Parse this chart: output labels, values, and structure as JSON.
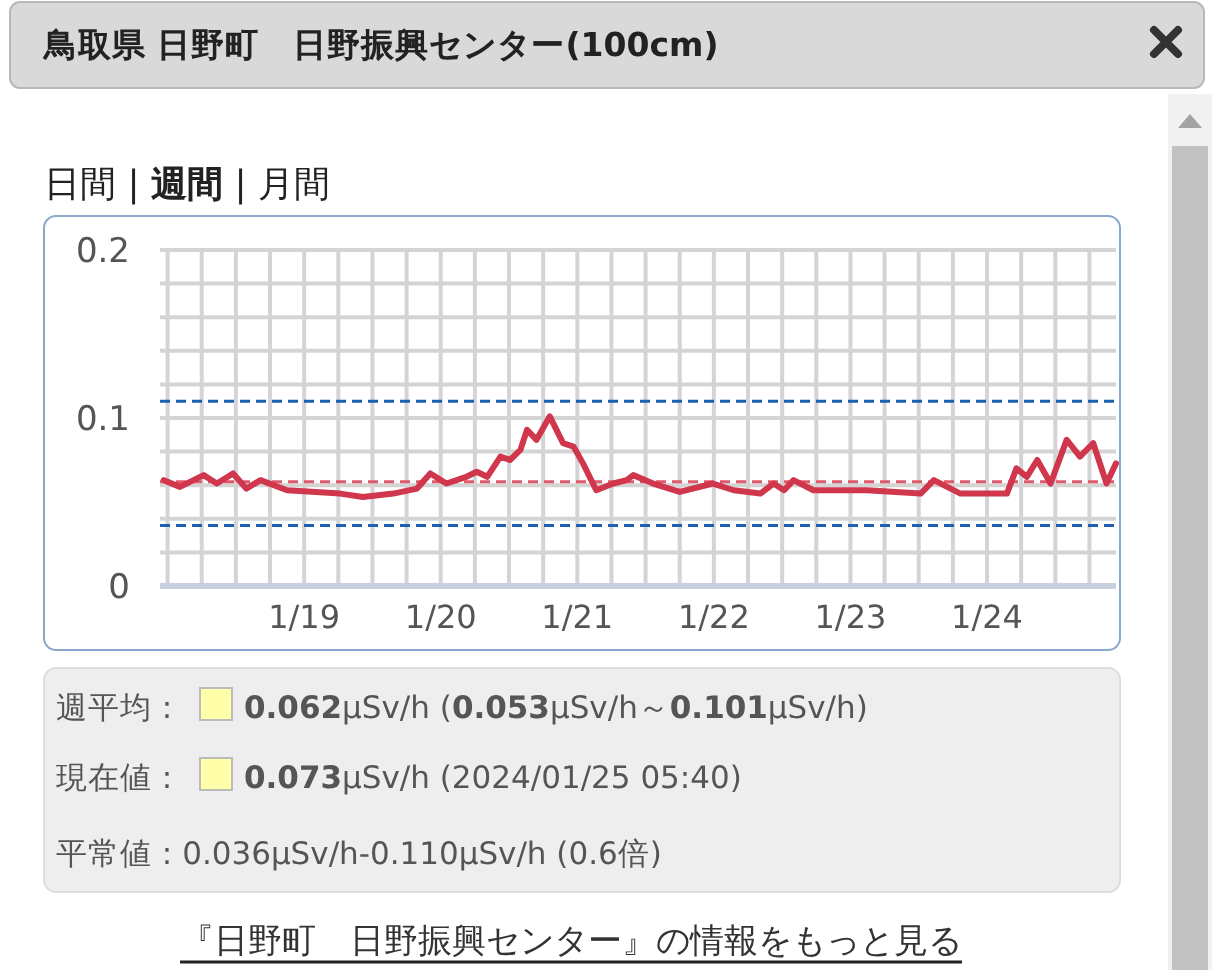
{
  "chart_data": {
    "type": "line",
    "title": "鳥取県 日野町　日野振興センター(100cm)",
    "annotations": [
      "日間 | **週間** | 月間",
      "週平均 :",
      "**0.062**μSv/h (**0.053**μSv/h～**0.101**μSv/h)",
      "現在値 :",
      "**0.073**μSv/h (2024/01/25 05:40)",
      "平常値 : 0.036μSv/h-0.110μSv/h (0.6倍)",
      "『日野町　日野振興センター』の情報をもっと見る"
    ],
    "xlim": [
      "2024-01-18T05:40",
      "2024-01-25T05:40"
    ],
    "xticks": [
      {
        "value": "2024-01-18T07:00",
        "label": null
      },
      {
        "value": "2024-01-18T13:00",
        "label": null
      },
      {
        "value": "2024-01-18T19:00",
        "label": null
      },
      {
        "value": "2024-01-19T01:00",
        "label": null
      },
      {
        "value": "2024-01-19T07:00",
        "label": "1/19"
      },
      {
        "value": "2024-01-19T13:00",
        "label": null
      },
      {
        "value": "2024-01-19T19:00",
        "label": null
      },
      {
        "value": "2024-01-20T01:00",
        "label": null
      },
      {
        "value": "2024-01-20T07:00",
        "label": "1/20"
      },
      {
        "value": "2024-01-20T13:00",
        "label": null
      },
      {
        "value": "2024-01-20T19:00",
        "label": null
      },
      {
        "value": "2024-01-21T01:00",
        "label": null
      },
      {
        "value": "2024-01-21T07:00",
        "label": "1/21"
      },
      {
        "value": "2024-01-21T13:00",
        "label": null
      },
      {
        "value": "2024-01-21T19:00",
        "label": null
      },
      {
        "value": "2024-01-22T01:00",
        "label": null
      },
      {
        "value": "2024-01-22T07:00",
        "label": "1/22"
      },
      {
        "value": "2024-01-22T13:00",
        "label": null
      },
      {
        "value": "2024-01-22T19:00",
        "label": null
      },
      {
        "value": "2024-01-23T01:00",
        "label": null
      },
      {
        "value": "2024-01-23T07:00",
        "label": "1/23"
      },
      {
        "value": "2024-01-23T13:00",
        "label": null
      },
      {
        "value": "2024-01-23T19:00",
        "label": null
      },
      {
        "value": "2024-01-24T01:00",
        "label": null
      },
      {
        "value": "2024-01-24T07:00",
        "label": "1/24"
      },
      {
        "value": "2024-01-24T13:00",
        "label": null
      },
      {
        "value": "2024-01-24T19:00",
        "label": null
      },
      {
        "value": "2024-01-25T01:00",
        "label": null
      }
    ],
    "ylim": [
      0,
      0.2
    ],
    "yticks": [
      0,
      {
        "value": 0.02,
        "label": null
      },
      {
        "value": 0.04,
        "label": null
      },
      {
        "value": 0.06,
        "label": null
      },
      {
        "value": 0.08,
        "label": null
      },
      0.1,
      {
        "value": 0.12,
        "label": null
      },
      {
        "value": 0.14,
        "label": null
      },
      {
        "value": 0.16,
        "label": null
      },
      {
        "value": 0.18,
        "label": null
      },
      0.2
    ],
    "grid": true,
    "marker": "none",
    "line_style": "solid",
    "ref_lines": [
      {
        "axis": "y",
        "value": 0.11,
        "color": "#1f5fb0",
        "line_style": "dashed"
      },
      {
        "axis": "y",
        "value": 0.036,
        "color": "#1f5fb0",
        "line_style": "dashed"
      },
      {
        "axis": "y",
        "value": 0.062,
        "color": "#e05a6e",
        "line_style": "dashed"
      }
    ],
    "series": [
      {
        "color": "#d0364c",
        "x": [
          "2024-01-18T06:20",
          "2024-01-18T09:10",
          "2024-01-18T13:20",
          "2024-01-18T15:40",
          "2024-01-18T18:30",
          "2024-01-18T20:50",
          "2024-01-18T23:20",
          "2024-01-19T04:00",
          "2024-01-19T13:20",
          "2024-01-19T17:20",
          "2024-01-19T22:40",
          "2024-01-20T02:50",
          "2024-01-20T05:10",
          "2024-01-20T08:00",
          "2024-01-20T11:30",
          "2024-01-20T13:20",
          "2024-01-20T15:10",
          "2024-01-20T17:30",
          "2024-01-20T19:10",
          "2024-01-20T21:00",
          "2024-01-20T22:10",
          "2024-01-20T23:50",
          "2024-01-21T02:10",
          "2024-01-21T04:30",
          "2024-01-21T06:20",
          "2024-01-21T08:00",
          "2024-01-21T10:20",
          "2024-01-21T13:20",
          "2024-01-21T15:40",
          "2024-01-21T16:50",
          "2024-01-21T20:20",
          "2024-01-22T01:00",
          "2024-01-22T06:50",
          "2024-01-22T10:30",
          "2024-01-22T15:10",
          "2024-01-22T17:30",
          "2024-01-22T19:20",
          "2024-01-22T21:00",
          "2024-01-23T00:30",
          "2024-01-23T09:50",
          "2024-01-23T19:20",
          "2024-01-23T21:40",
          "2024-01-24T02:20",
          "2024-01-24T10:30",
          "2024-01-24T12:10",
          "2024-01-24T14:00",
          "2024-01-24T15:50",
          "2024-01-24T18:10",
          "2024-01-24T21:00",
          "2024-01-24T23:20",
          "2024-01-25T01:40",
          "2024-01-25T04:00",
          "2024-01-25T05:40"
        ],
        "values": [
          0.063,
          0.059,
          0.066,
          0.061,
          0.067,
          0.058,
          0.063,
          0.057,
          0.055,
          0.053,
          0.055,
          0.058,
          0.067,
          0.061,
          0.065,
          0.068,
          0.065,
          0.077,
          0.075,
          0.081,
          0.093,
          0.087,
          0.101,
          0.085,
          0.083,
          0.073,
          0.057,
          0.061,
          0.063,
          0.066,
          0.061,
          0.056,
          0.061,
          0.057,
          0.055,
          0.061,
          0.057,
          0.063,
          0.057,
          0.057,
          0.055,
          0.063,
          0.055,
          0.055,
          0.07,
          0.065,
          0.075,
          0.061,
          0.087,
          0.077,
          0.085,
          0.061,
          0.073
        ]
      }
    ]
  }
}
